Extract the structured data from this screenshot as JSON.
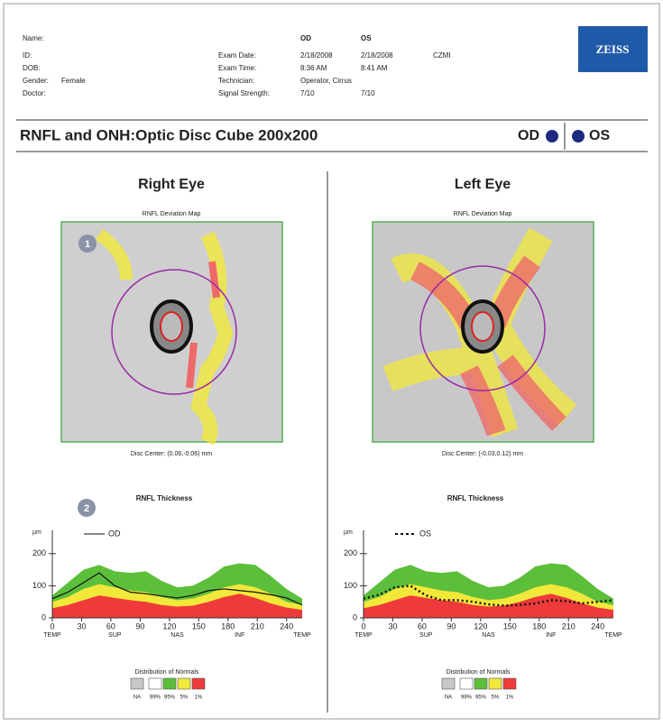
{
  "header": {
    "name_label": "Name:",
    "id_label": "ID:",
    "dob_label": "DOB:",
    "gender_label": "Gender:",
    "gender": "Female",
    "doctor_label": "Doctor:",
    "od": "OD",
    "os": "OS",
    "rows": [
      [
        "Exam Date:",
        "2/18/2008",
        "2/18/2008",
        "CZMI"
      ],
      [
        "Exam Time:",
        "8:36 AM",
        "8:41 AM"
      ],
      [
        "Technician:",
        "Operator, Cirrus"
      ],
      [
        "Signal Strength:",
        "7/10",
        "7/10"
      ]
    ]
  },
  "logo": "ZEISS",
  "title": "RNFL and ONH:Optic Disc Cube 200x200",
  "eye_labels": [
    "OD",
    "OS"
  ],
  "panels": [
    {
      "eye_title": "Right Eye",
      "map_title": "RNFL Deviation Map",
      "map_badge": "1",
      "disc_center": "Disc Center: (0.06,-0.06) mm",
      "thickness": {
        "type": "line",
        "title": "RNFL Thickness",
        "badge": "2",
        "y_label": "µm",
        "x": [
          0,
          16,
          32,
          48,
          64,
          80,
          96,
          112,
          128,
          144,
          160,
          176,
          192,
          208,
          224,
          240,
          256
        ],
        "xlim": [
          0,
          256
        ],
        "ylim": [
          0,
          250
        ],
        "yticks": [
          0,
          100,
          200
        ],
        "xticks": [
          0,
          30,
          60,
          90,
          120,
          150,
          180,
          210,
          240
        ],
        "region_labels": [
          "TEMP",
          "SUP",
          "NAS",
          "INF",
          "TEMP"
        ],
        "bands": [
          {
            "color": "#5cbf3c",
            "values": [
              70,
              110,
              150,
              165,
              145,
              140,
              145,
              115,
              95,
              100,
              125,
              160,
              170,
              165,
              130,
              90,
              60
            ]
          },
          {
            "color": "#f2e83a",
            "values": [
              50,
              65,
              90,
              105,
              95,
              85,
              80,
              65,
              55,
              60,
              75,
              95,
              105,
              95,
              75,
              50,
              40
            ]
          },
          {
            "color": "#ee3a3a",
            "values": [
              30,
              40,
              55,
              70,
              62,
              55,
              50,
              40,
              35,
              38,
              50,
              65,
              75,
              62,
              45,
              32,
              25
            ]
          }
        ],
        "series": [
          {
            "name": "OD",
            "color": "#111111",
            "dashed": false,
            "values": [
              60,
              80,
              110,
              140,
              100,
              80,
              75,
              68,
              62,
              70,
              85,
              90,
              85,
              80,
              72,
              62,
              40
            ]
          }
        ],
        "normals": {
          "title": "Distribution of Normals",
          "labels": [
            "NA",
            "99%",
            "95%",
            "5%",
            "1%"
          ],
          "colors": [
            "#c8c8c8",
            "#ffffff",
            "#5cbf3c",
            "#f2e83a",
            "#ee3a3a"
          ]
        }
      }
    },
    {
      "eye_title": "Left Eye",
      "map_title": "RNFL Deviation Map",
      "disc_center": "Disc Center: (-0.03,0.12) mm",
      "thickness": {
        "type": "line",
        "title": "RNFL Thickness",
        "y_label": "µm",
        "x": [
          0,
          16,
          32,
          48,
          64,
          80,
          96,
          112,
          128,
          144,
          160,
          176,
          192,
          208,
          224,
          240,
          256
        ],
        "xlim": [
          0,
          256
        ],
        "ylim": [
          0,
          250
        ],
        "yticks": [
          0,
          100,
          200
        ],
        "xticks": [
          0,
          30,
          60,
          90,
          120,
          150,
          180,
          210,
          240
        ],
        "region_labels": [
          "TEMP",
          "SUP",
          "NAS",
          "INF",
          "TEMP"
        ],
        "bands": [
          {
            "color": "#5cbf3c",
            "values": [
              70,
              110,
              150,
              165,
              145,
              140,
              145,
              115,
              95,
              100,
              125,
              160,
              170,
              165,
              130,
              90,
              60
            ]
          },
          {
            "color": "#f2e83a",
            "values": [
              50,
              65,
              90,
              105,
              95,
              85,
              80,
              65,
              55,
              60,
              75,
              95,
              105,
              95,
              75,
              50,
              40
            ]
          },
          {
            "color": "#ee3a3a",
            "values": [
              30,
              40,
              55,
              70,
              62,
              55,
              50,
              40,
              35,
              38,
              50,
              65,
              75,
              62,
              45,
              32,
              25
            ]
          }
        ],
        "series": [
          {
            "name": "OS",
            "color": "#111111",
            "dashed": true,
            "values": [
              60,
              72,
              95,
              100,
              70,
              55,
              55,
              50,
              42,
              38,
              40,
              45,
              55,
              52,
              45,
              50,
              55
            ]
          }
        ],
        "normals": {
          "title": "Distribution of Normals",
          "labels": [
            "NA",
            "99%",
            "95%",
            "5%",
            "1%"
          ],
          "colors": [
            "#c8c8c8",
            "#ffffff",
            "#5cbf3c",
            "#f2e83a",
            "#ee3a3a"
          ]
        }
      }
    }
  ]
}
